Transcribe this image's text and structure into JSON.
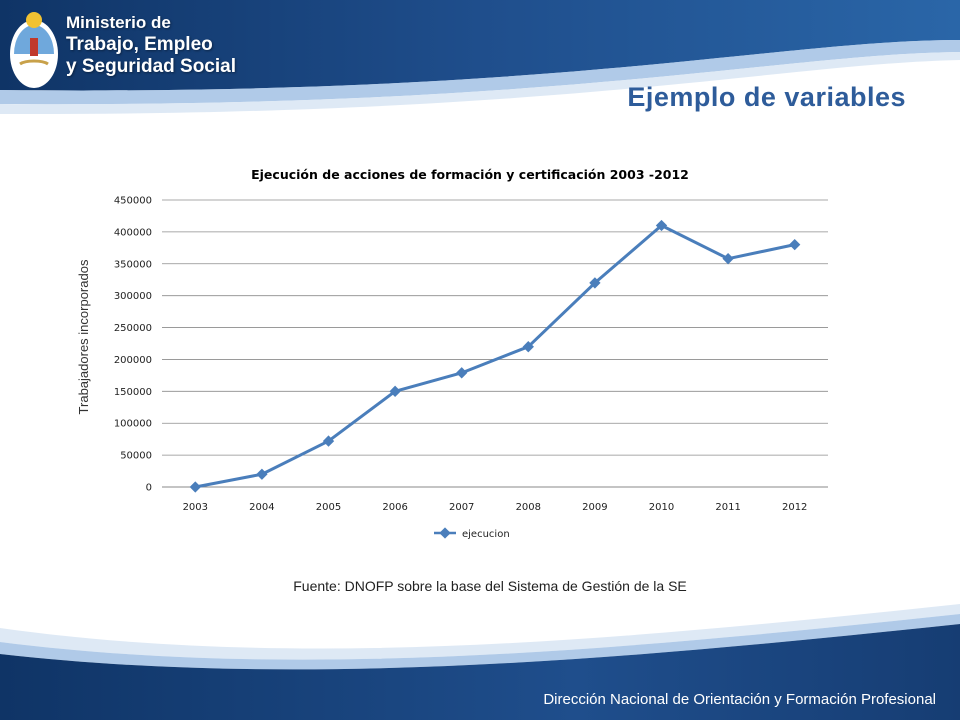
{
  "header": {
    "ministry_line1": "Ministerio de",
    "ministry_line2": "Trabajo, Empleo",
    "ministry_line3": "y Seguridad Social",
    "slide_title": "Ejemplo de variables",
    "brand_color": "#1f4e8c",
    "accent_color": "#2e5c9a"
  },
  "chart_data": {
    "type": "line",
    "title": "Ejecución de acciones de formación y certificación 2003 -2012",
    "xlabel": "",
    "ylabel": "Trabajadores incorporados",
    "categories": [
      "2003",
      "2004",
      "2005",
      "2006",
      "2007",
      "2008",
      "2009",
      "2010",
      "2011",
      "2012"
    ],
    "series": [
      {
        "name": "ejecucion",
        "values": [
          0,
          20000,
          72000,
          150000,
          179000,
          220000,
          320000,
          410000,
          358000,
          380000
        ],
        "color": "#4a7ebb"
      }
    ],
    "ylim": [
      0,
      450000
    ],
    "yticks": [
      0,
      50000,
      100000,
      150000,
      200000,
      250000,
      300000,
      350000,
      400000,
      450000
    ],
    "grid": true,
    "legend": "bottom"
  },
  "source_note": "Fuente: DNOFP sobre la base del Sistema de Gestión de la SE",
  "footer": {
    "text": "Dirección Nacional de Orientación y Formación Profesional"
  }
}
